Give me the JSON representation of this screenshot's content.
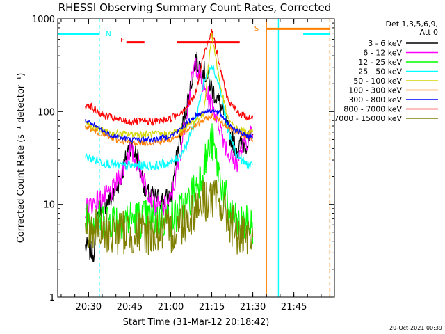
{
  "chart_data": {
    "type": "line",
    "title": "RHESSI Observing Summary Count Rates, Corrected",
    "xlabel": "Start Time (31-Mar-12 20:18:42)",
    "ylabel": "Corrected Count Rate (s⁻¹ detector⁻¹)",
    "yscale": "log",
    "ylim": [
      1,
      1000
    ],
    "xlim": [
      20.312,
      21.997
    ],
    "x_ticks": [
      {
        "label": "20:30",
        "value": 20.5
      },
      {
        "label": "20:45",
        "value": 20.75
      },
      {
        "label": "21:00",
        "value": 21.0
      },
      {
        "label": "21:15",
        "value": 21.25
      },
      {
        "label": "21:30",
        "value": 21.5
      },
      {
        "label": "21:45",
        "value": 21.75
      }
    ],
    "y_ticks": [
      {
        "label": "1",
        "value": 1
      },
      {
        "label": "10",
        "value": 10
      },
      {
        "label": "100",
        "value": 100
      },
      {
        "label": "1000",
        "value": 1000
      }
    ],
    "legend": {
      "header": [
        "Det 1,3,5,6,9,",
        "Att 0"
      ],
      "placement": "outside-right"
    },
    "flags": [
      {
        "label": "N",
        "color": "#00ffff"
      },
      {
        "label": "F",
        "color": "#ff0000"
      },
      {
        "label": "S",
        "color": "#ff8000"
      }
    ],
    "flag_bars": [
      {
        "name": "night",
        "color": "#00ffff",
        "value": 680,
        "segments": [
          [
            20.312,
            20.568
          ],
          [
            21.807,
            21.969
          ]
        ]
      },
      {
        "name": "flare",
        "color": "#ff0000",
        "value": 560,
        "segments": [
          [
            20.73,
            20.84
          ],
          [
            21.04,
            21.42
          ]
        ]
      },
      {
        "name": "saa",
        "color": "#ff8000",
        "value": 780,
        "segments": [
          [
            21.585,
            21.969
          ]
        ]
      }
    ],
    "vlines": [
      {
        "name": "night-end",
        "x": 20.565,
        "color": "#00ffff",
        "dashed": true
      },
      {
        "name": "saa-start",
        "x": 21.583,
        "color": "#ff8000",
        "dashed": false
      },
      {
        "name": "night-start",
        "x": 21.656,
        "color": "#00ffff",
        "dashed": false
      },
      {
        "name": "saa-end",
        "x": 21.969,
        "color": "#ff8000",
        "dashed": true
      }
    ],
    "series": [
      {
        "name": "3 - 6 keV",
        "color": "#000000",
        "x": [
          20.48,
          20.53,
          20.56,
          20.6,
          20.65,
          20.7,
          20.75,
          20.8,
          20.85,
          20.9,
          20.95,
          21.0,
          21.05,
          21.1,
          21.15,
          21.2,
          21.25,
          21.3,
          21.35,
          21.4,
          21.45,
          21.5
        ],
        "y": [
          3.5,
          3,
          9,
          10,
          12,
          20,
          45,
          32,
          13,
          12,
          11,
          12,
          45,
          120,
          350,
          280,
          180,
          120,
          60,
          40,
          45,
          50
        ]
      },
      {
        "name": "6 - 12 keV",
        "color": "#ff00ff",
        "x": [
          20.48,
          20.55,
          20.6,
          20.65,
          20.7,
          20.75,
          20.8,
          20.85,
          20.9,
          20.95,
          21.0,
          21.05,
          21.1,
          21.15,
          21.2,
          21.25,
          21.3,
          21.35,
          21.4,
          21.45,
          21.5
        ],
        "y": [
          9,
          11,
          12,
          14,
          22,
          38,
          28,
          16,
          10,
          9,
          11,
          28,
          110,
          340,
          180,
          120,
          70,
          35,
          28,
          45,
          60
        ]
      },
      {
        "name": "12 - 25 keV",
        "color": "#00ff00",
        "x": [
          20.48,
          20.55,
          20.6,
          20.65,
          20.7,
          20.75,
          20.8,
          20.85,
          20.9,
          20.95,
          21.0,
          21.05,
          21.1,
          21.15,
          21.2,
          21.25,
          21.3,
          21.35,
          21.4,
          21.45,
          21.5
        ],
        "y": [
          8,
          7,
          7,
          7,
          7,
          7,
          7,
          7,
          7,
          7,
          7,
          8,
          10,
          15,
          25,
          48,
          20,
          9,
          6,
          6,
          6
        ]
      },
      {
        "name": "25 - 50 keV",
        "color": "#00ffff",
        "x": [
          20.48,
          20.55,
          20.6,
          20.65,
          20.7,
          20.75,
          20.8,
          20.85,
          20.9,
          20.95,
          21.0,
          21.05,
          21.1,
          21.15,
          21.2,
          21.25,
          21.3,
          21.35,
          21.4,
          21.45,
          21.5
        ],
        "y": [
          32,
          30,
          28,
          27,
          26,
          26,
          26,
          26,
          26,
          27,
          28,
          32,
          45,
          80,
          200,
          330,
          180,
          60,
          35,
          28,
          25
        ]
      },
      {
        "name": "50 - 100 keV",
        "color": "#d4d400",
        "x": [
          20.48,
          20.55,
          20.6,
          20.65,
          20.7,
          20.75,
          20.8,
          20.85,
          20.9,
          20.95,
          21.0,
          21.05,
          21.1,
          21.15,
          21.2,
          21.25,
          21.3,
          21.35,
          21.4,
          21.45,
          21.5
        ],
        "y": [
          75,
          65,
          60,
          58,
          57,
          57,
          57,
          57,
          57,
          57,
          58,
          62,
          70,
          80,
          95,
          700,
          200,
          80,
          65,
          60,
          58
        ]
      },
      {
        "name": "100 - 300 keV",
        "color": "#ff8000",
        "x": [
          20.48,
          20.55,
          20.6,
          20.65,
          20.7,
          20.75,
          20.8,
          20.85,
          20.9,
          20.95,
          21.0,
          21.05,
          21.1,
          21.15,
          21.2,
          21.25,
          21.3,
          21.35,
          21.4,
          21.45,
          21.5
        ],
        "y": [
          70,
          60,
          55,
          50,
          48,
          47,
          46,
          46,
          47,
          48,
          50,
          55,
          62,
          70,
          80,
          90,
          80,
          68,
          60,
          55,
          50
        ]
      },
      {
        "name": "300 - 800 keV",
        "color": "#0000ff",
        "x": [
          20.48,
          20.55,
          20.6,
          20.65,
          20.7,
          20.75,
          20.8,
          20.85,
          20.9,
          20.95,
          21.0,
          21.05,
          21.1,
          21.15,
          21.2,
          21.25,
          21.3,
          21.35,
          21.4,
          21.45,
          21.5
        ],
        "y": [
          78,
          68,
          60,
          55,
          52,
          50,
          50,
          50,
          50,
          52,
          55,
          62,
          75,
          90,
          100,
          103,
          95,
          75,
          62,
          56,
          52
        ]
      },
      {
        "name": "800 - 7000 keV",
        "color": "#ff0000",
        "x": [
          20.48,
          20.5,
          20.55,
          20.6,
          20.65,
          20.7,
          20.75,
          20.8,
          20.85,
          20.9,
          20.95,
          21.0,
          21.05,
          21.1,
          21.15,
          21.2,
          21.25,
          21.3,
          21.35,
          21.4,
          21.45,
          21.5
        ],
        "y": [
          115,
          120,
          100,
          90,
          85,
          80,
          78,
          78,
          78,
          78,
          80,
          85,
          95,
          115,
          150,
          400,
          780,
          300,
          130,
          100,
          90,
          85
        ]
      },
      {
        "name": "7000 - 15000 keV",
        "color": "#808000",
        "x": [
          20.48,
          20.55,
          20.6,
          20.65,
          20.7,
          20.75,
          20.8,
          20.85,
          20.9,
          20.95,
          21.0,
          21.05,
          21.1,
          21.15,
          21.2,
          21.25,
          21.3,
          21.35,
          21.4,
          21.45,
          21.5
        ],
        "y": [
          6,
          5,
          5,
          5,
          5,
          5,
          5,
          5,
          5,
          5,
          5,
          6,
          7,
          9,
          11,
          12,
          10,
          7,
          5,
          4,
          4
        ]
      }
    ]
  },
  "footer": {
    "timestamp": "20-Oct-2021 00:39"
  }
}
